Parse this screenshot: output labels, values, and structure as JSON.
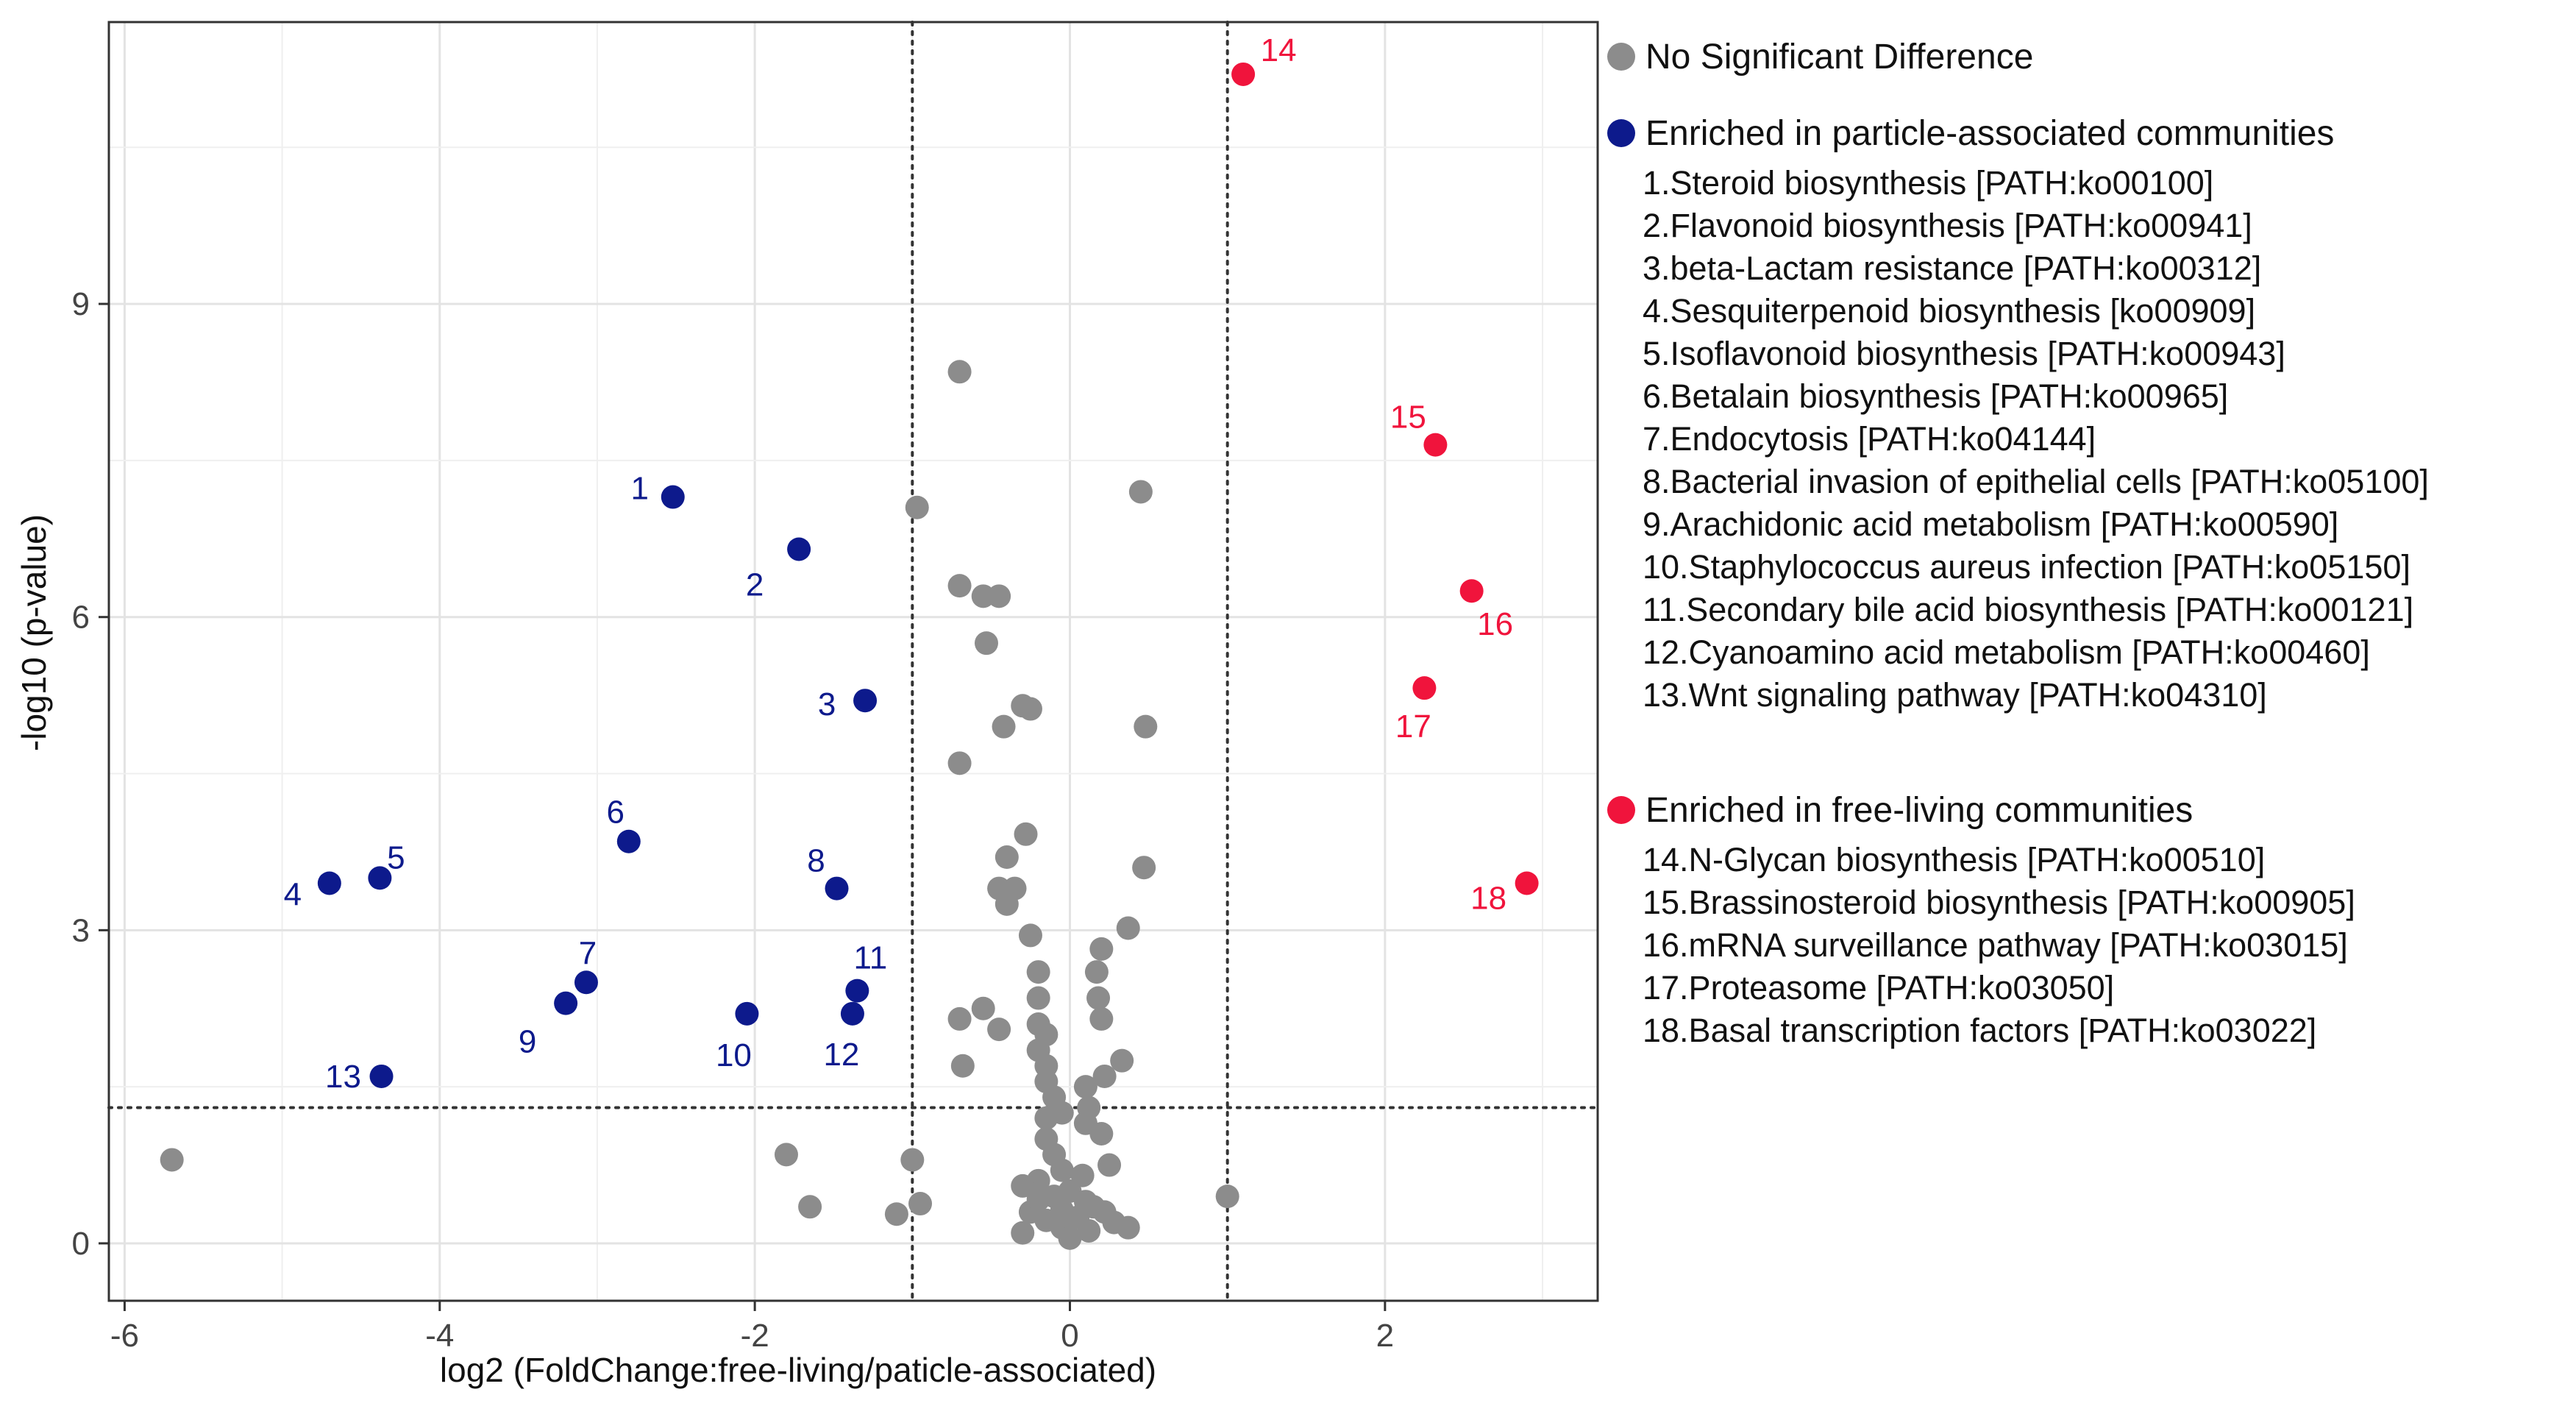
{
  "chart_data": {
    "type": "scatter",
    "title": "",
    "xlabel": "log2 (FoldChange:free-living/paticle-associated)",
    "ylabel": "-log10 (p-value)",
    "xlim": [
      -6.1,
      3.35
    ],
    "ylim": [
      -0.55,
      11.7
    ],
    "xticks": [
      -6,
      -4,
      -2,
      0,
      2
    ],
    "xtick_labels": [
      "-6",
      "-4",
      "-2",
      "0",
      "2"
    ],
    "yticks": [
      0,
      3,
      6,
      9
    ],
    "ytick_labels": [
      "0",
      "3",
      "6",
      "9"
    ],
    "grid": true,
    "reference_lines": {
      "x": [
        -1,
        1
      ],
      "y": [
        1.3
      ]
    },
    "colors": {
      "ns": "#8c8c8c",
      "particle": "#0d1a8c",
      "free": "#f0143c"
    },
    "series": [
      {
        "name": "No Significant Difference",
        "color_key": "ns",
        "points": [
          [
            -5.7,
            0.8
          ],
          [
            -1.8,
            0.85
          ],
          [
            -1.65,
            0.35
          ],
          [
            -1.1,
            0.28
          ],
          [
            -1.0,
            0.8
          ],
          [
            -0.95,
            0.38
          ],
          [
            -0.97,
            7.05
          ],
          [
            -0.7,
            8.35
          ],
          [
            -0.7,
            6.3
          ],
          [
            -0.55,
            6.2
          ],
          [
            -0.45,
            6.2
          ],
          [
            -0.53,
            5.75
          ],
          [
            -0.3,
            5.15
          ],
          [
            -0.25,
            5.12
          ],
          [
            -0.42,
            4.95
          ],
          [
            -0.7,
            4.6
          ],
          [
            -0.28,
            3.92
          ],
          [
            -0.4,
            3.7
          ],
          [
            -0.35,
            3.4
          ],
          [
            -0.4,
            3.25
          ],
          [
            -0.45,
            3.4
          ],
          [
            -0.25,
            2.95
          ],
          [
            -0.2,
            2.6
          ],
          [
            -0.7,
            2.15
          ],
          [
            -0.55,
            2.25
          ],
          [
            -0.45,
            2.05
          ],
          [
            -0.68,
            1.7
          ],
          [
            -0.2,
            2.35
          ],
          [
            -0.2,
            2.1
          ],
          [
            -0.15,
            2.0
          ],
          [
            -0.2,
            1.85
          ],
          [
            -0.15,
            1.7
          ],
          [
            -0.15,
            1.55
          ],
          [
            -0.1,
            1.4
          ],
          [
            -0.05,
            1.25
          ],
          [
            -0.15,
            1.2
          ],
          [
            -0.15,
            1.0
          ],
          [
            -0.1,
            0.85
          ],
          [
            -0.05,
            0.7
          ],
          [
            -0.2,
            0.6
          ],
          [
            -0.1,
            0.45
          ],
          [
            -0.05,
            0.32
          ],
          [
            0.0,
            0.5
          ],
          [
            0.05,
            0.25
          ],
          [
            0.08,
            0.65
          ],
          [
            -0.3,
            0.55
          ],
          [
            -0.3,
            0.1
          ],
          [
            -0.05,
            0.15
          ],
          [
            0.0,
            0.05
          ],
          [
            -0.15,
            0.22
          ],
          [
            0.1,
            0.4
          ],
          [
            0.15,
            0.35
          ],
          [
            -0.25,
            0.3
          ],
          [
            -0.2,
            0.42
          ],
          [
            0.12,
            0.12
          ],
          [
            0.45,
            7.2
          ],
          [
            0.48,
            4.95
          ],
          [
            0.47,
            3.6
          ],
          [
            0.37,
            3.02
          ],
          [
            0.2,
            2.82
          ],
          [
            0.17,
            2.6
          ],
          [
            0.18,
            2.35
          ],
          [
            0.2,
            2.15
          ],
          [
            0.33,
            1.75
          ],
          [
            0.22,
            1.6
          ],
          [
            0.1,
            1.5
          ],
          [
            0.12,
            1.3
          ],
          [
            0.2,
            1.05
          ],
          [
            0.1,
            1.15
          ],
          [
            0.25,
            0.75
          ],
          [
            0.28,
            0.2
          ],
          [
            0.37,
            0.15
          ],
          [
            0.22,
            0.3
          ],
          [
            1.0,
            0.45
          ]
        ]
      },
      {
        "name": "Enriched in particle-associated communities",
        "color_key": "particle",
        "points": [
          [
            -2.52,
            7.15
          ],
          [
            -1.72,
            6.65
          ],
          [
            -1.3,
            5.2
          ],
          [
            -4.7,
            3.45
          ],
          [
            -4.38,
            3.5
          ],
          [
            -2.8,
            3.85
          ],
          [
            -3.07,
            2.5
          ],
          [
            -1.48,
            3.4
          ],
          [
            -3.2,
            2.3
          ],
          [
            -2.05,
            2.2
          ],
          [
            -1.35,
            2.42
          ],
          [
            -1.38,
            2.2
          ],
          [
            -4.37,
            1.6
          ]
        ],
        "labels": [
          "1",
          "2",
          "3",
          "4",
          "5",
          "6",
          "7",
          "8",
          "9",
          "10",
          "11",
          "12",
          "13"
        ]
      },
      {
        "name": "Enriched in free-living communities",
        "color_key": "free",
        "points": [
          [
            1.1,
            11.2
          ],
          [
            2.32,
            7.65
          ],
          [
            2.55,
            6.25
          ],
          [
            2.25,
            5.32
          ],
          [
            2.9,
            3.45
          ]
        ],
        "labels": [
          "14",
          "15",
          "16",
          "17",
          "18"
        ]
      }
    ]
  },
  "legend": {
    "ns_title": "No Significant Difference",
    "particle_title": "Enriched in particle-associated communities",
    "particle_items": [
      "1.Steroid biosynthesis [PATH:ko00100]",
      "2.Flavonoid biosynthesis [PATH:ko00941]",
      "3.beta-Lactam resistance [PATH:ko00312]",
      "4.Sesquiterpenoid biosynthesis [ko00909]",
      "5.Isoflavonoid biosynthesis [PATH:ko00943]",
      "6.Betalain biosynthesis [PATH:ko00965]",
      "7.Endocytosis [PATH:ko04144]",
      "8.Bacterial invasion of epithelial cells [PATH:ko05100]",
      "9.Arachidonic acid metabolism [PATH:ko00590]",
      "10.Staphylococcus aureus infection [PATH:ko05150]",
      "11.Secondary bile acid biosynthesis [PATH:ko00121]",
      "12.Cyanoamino acid metabolism [PATH:ko00460]",
      "13.Wnt signaling pathway [PATH:ko04310]"
    ],
    "free_title": "Enriched in free-living communities",
    "free_items": [
      "14.N-Glycan biosynthesis [PATH:ko00510]",
      "15.Brassinosteroid biosynthesis [PATH:ko00905]",
      "16.mRNA surveillance pathway [PATH:ko03015]",
      "17.Proteasome [PATH:ko03050]",
      "18.Basal transcription factors [PATH:ko03022]"
    ]
  }
}
